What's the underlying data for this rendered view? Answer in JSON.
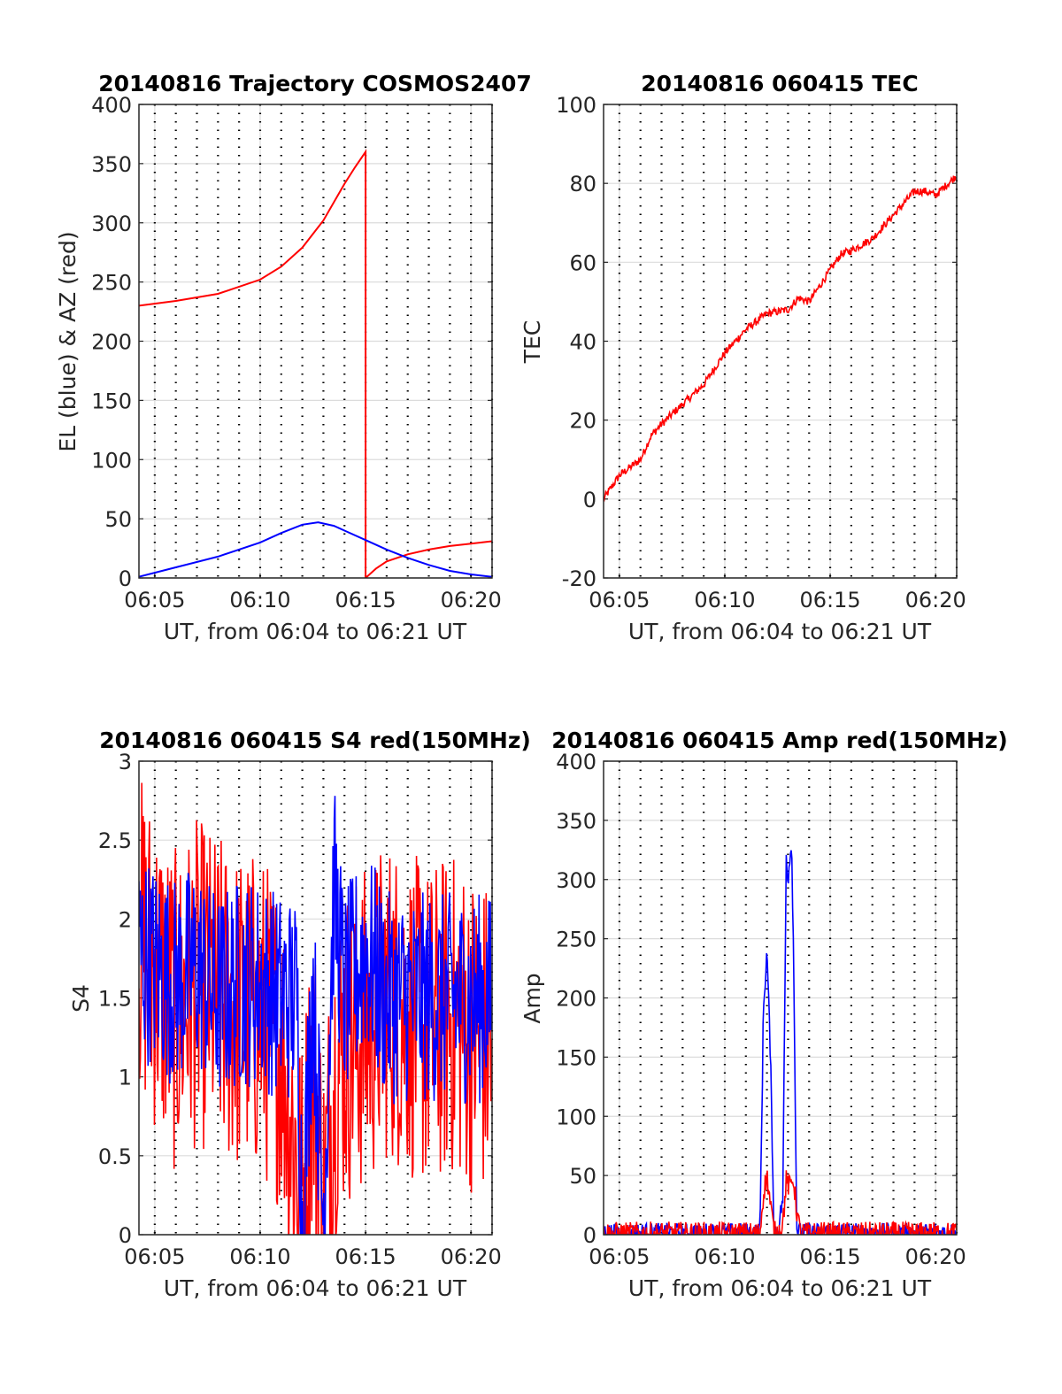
{
  "colors": {
    "red": "#ff0000",
    "blue": "#0000ff",
    "grid": "#dcdcdc",
    "axis": "#262626"
  },
  "chart_data": [
    {
      "id": "trajectory",
      "type": "line",
      "title": "20140816 Trajectory COSMOS2407",
      "xlabel": "UT, from 06:04 to 06:21 UT",
      "ylabel": "EL (blue) & AZ (red)",
      "xlim": [
        "06:04:15",
        "06:21:00"
      ],
      "ylim": [
        0,
        400
      ],
      "yticks": [
        "0",
        "50",
        "100",
        "150",
        "200",
        "250",
        "300",
        "350",
        "400"
      ],
      "xticks": [
        "06:05",
        "06:10",
        "06:15",
        "06:20"
      ],
      "grid": true,
      "series": [
        {
          "color": "red",
          "x": [
            "06:04:15",
            "06:06:00",
            "06:08:00",
            "06:10:00",
            "06:11:00",
            "06:12:00",
            "06:13:00",
            "06:14:00",
            "06:14:30",
            "06:15:00",
            "06:15:00",
            "06:15:00",
            "06:15:30",
            "06:16:00",
            "06:17:00",
            "06:18:00",
            "06:19:00",
            "06:20:00",
            "06:21:00"
          ],
          "y": [
            230,
            234,
            240,
            252,
            263,
            279,
            302,
            333,
            347,
            360,
            3,
            0,
            8,
            14,
            20,
            24,
            27,
            29,
            31
          ]
        },
        {
          "color": "blue",
          "x": [
            "06:04:15",
            "06:06:00",
            "06:08:00",
            "06:10:00",
            "06:11:00",
            "06:12:00",
            "06:12:45",
            "06:13:30",
            "06:14:00",
            "06:15:00",
            "06:16:00",
            "06:17:00",
            "06:18:00",
            "06:19:00",
            "06:20:00",
            "06:21:00"
          ],
          "y": [
            1,
            9,
            18,
            30,
            38,
            45,
            47,
            44,
            40,
            32,
            24,
            17,
            11,
            6,
            3,
            1
          ]
        }
      ]
    },
    {
      "id": "tec",
      "type": "line",
      "title": "20140816 060415 TEC",
      "xlabel": "UT, from 06:04 to 06:21 UT",
      "ylabel": "TEC",
      "xlim": [
        "06:04:15",
        "06:21:00"
      ],
      "ylim": [
        -20,
        100
      ],
      "yticks": [
        "-20",
        "0",
        "20",
        "40",
        "60",
        "80",
        "100"
      ],
      "xticks": [
        "06:05",
        "06:10",
        "06:15",
        "06:20"
      ],
      "grid": true,
      "series": [
        {
          "color": "red",
          "noise": 0.8,
          "x": [
            "06:04:15",
            "06:05:00",
            "06:06:00",
            "06:06:30",
            "06:07:00",
            "06:08:00",
            "06:09:00",
            "06:10:00",
            "06:11:00",
            "06:12:00",
            "06:13:00",
            "06:13:30",
            "06:14:00",
            "06:15:00",
            "06:15:30",
            "06:16:00",
            "06:17:00",
            "06:18:00",
            "06:19:00",
            "06:19:30",
            "06:20:00",
            "06:21:00"
          ],
          "y": [
            0,
            6,
            10,
            16,
            19,
            24,
            29,
            37,
            43,
            47,
            48,
            51,
            50,
            58,
            62,
            63,
            66,
            72,
            78,
            78,
            77,
            82
          ]
        }
      ]
    },
    {
      "id": "s4",
      "type": "line",
      "title": "20140816 060415 S4 red(150MHz)",
      "xlabel": "UT, from 06:04 to 06:21 UT",
      "ylabel": "S4",
      "xlim": [
        "06:04:15",
        "06:21:00"
      ],
      "ylim": [
        0,
        3
      ],
      "yticks": [
        "0",
        "0.5",
        "1",
        "1.5",
        "2",
        "2.5",
        "3"
      ],
      "xticks": [
        "06:05",
        "06:10",
        "06:15",
        "06:20"
      ],
      "grid": true,
      "series": [
        {
          "color": "red",
          "noise": 1.4,
          "x": [
            "06:04:15",
            "06:06:00",
            "06:07:00",
            "06:08:00",
            "06:09:00",
            "06:10:00",
            "06:11:00",
            "06:12:00",
            "06:12:30",
            "06:13:00",
            "06:13:30",
            "06:14:00",
            "06:15:00",
            "06:16:00",
            "06:17:00",
            "06:18:00",
            "06:19:00",
            "06:20:00",
            "06:21:00"
          ],
          "y": [
            1.9,
            1.4,
            1.6,
            1.5,
            1.4,
            1.4,
            1.2,
            0.2,
            1.1,
            0.15,
            1.0,
            1.2,
            1.3,
            1.5,
            1.4,
            1.3,
            1.4,
            1.3,
            1.2
          ]
        },
        {
          "color": "blue",
          "noise": 0.9,
          "x": [
            "06:04:15",
            "06:05:00",
            "06:06:00",
            "06:07:00",
            "06:08:00",
            "06:09:00",
            "06:10:00",
            "06:11:00",
            "06:11:45",
            "06:12:00",
            "06:12:30",
            "06:13:00",
            "06:13:30",
            "06:14:00",
            "06:15:00",
            "06:16:00",
            "06:17:00",
            "06:18:00",
            "06:19:00",
            "06:20:00",
            "06:21:00"
          ],
          "y": [
            1.8,
            1.7,
            1.6,
            1.7,
            1.5,
            1.6,
            1.6,
            1.5,
            1.5,
            0.1,
            1.6,
            0.1,
            2.2,
            1.5,
            1.8,
            1.5,
            1.5,
            1.5,
            1.5,
            1.5,
            1.5
          ]
        }
      ]
    },
    {
      "id": "amp",
      "type": "line",
      "title": "20140816 060415 Amp red(150MHz)",
      "xlabel": "UT, from 06:04 to 06:21 UT",
      "ylabel": "Amp",
      "xlim": [
        "06:04:15",
        "06:21:00"
      ],
      "ylim": [
        0,
        400
      ],
      "yticks": [
        "0",
        "50",
        "100",
        "150",
        "200",
        "250",
        "300",
        "350",
        "400"
      ],
      "xticks": [
        "06:05",
        "06:10",
        "06:15",
        "06:20"
      ],
      "grid": true,
      "series": [
        {
          "color": "blue",
          "noise": 0.08,
          "x": [
            "06:04:15",
            "06:11:40",
            "06:11:50",
            "06:12:00",
            "06:12:10",
            "06:12:20",
            "06:12:30",
            "06:12:45",
            "06:12:55",
            "06:13:00",
            "06:13:10",
            "06:13:15",
            "06:13:25",
            "06:13:35",
            "06:21:00"
          ],
          "y": [
            2,
            2,
            190,
            240,
            150,
            5,
            2,
            30,
            320,
            300,
            335,
            250,
            5,
            2,
            2
          ]
        },
        {
          "color": "red",
          "noise": 0.1,
          "x": [
            "06:04:15",
            "06:11:40",
            "06:11:50",
            "06:12:00",
            "06:12:10",
            "06:12:20",
            "06:12:30",
            "06:12:45",
            "06:12:55",
            "06:13:05",
            "06:13:15",
            "06:13:25",
            "06:13:35",
            "06:21:00"
          ],
          "y": [
            1,
            1,
            35,
            50,
            25,
            2,
            1,
            10,
            45,
            40,
            48,
            20,
            1,
            1
          ]
        }
      ]
    }
  ]
}
